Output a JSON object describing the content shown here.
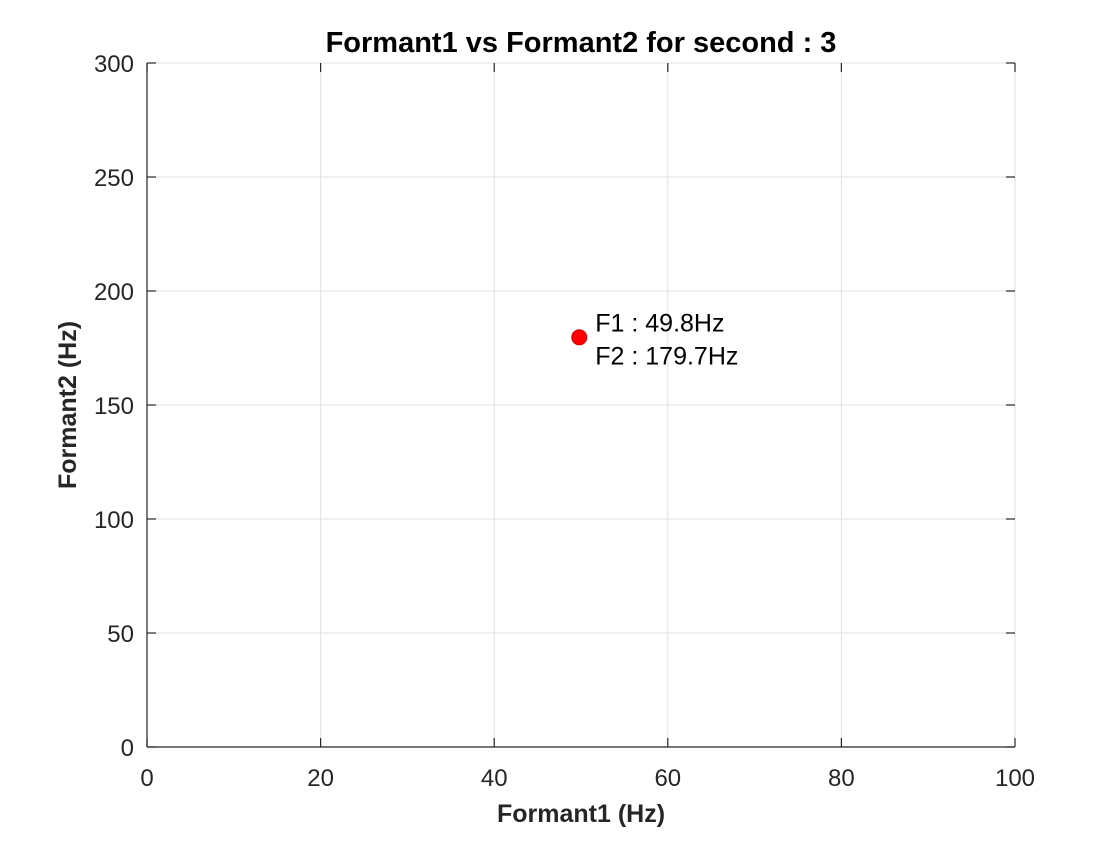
{
  "chart_data": {
    "type": "scatter",
    "title": "Formant1 vs Formant2 for second : 3",
    "xlabel": "Formant1 (Hz)",
    "ylabel": "Formant2 (Hz)",
    "xlim": [
      0,
      100
    ],
    "ylim": [
      0,
      300
    ],
    "xticks": [
      0,
      20,
      40,
      60,
      80,
      100
    ],
    "yticks": [
      0,
      50,
      100,
      150,
      200,
      250,
      300
    ],
    "xtick_labels": [
      "0",
      "20",
      "40",
      "60",
      "80",
      "100"
    ],
    "ytick_labels": [
      "0",
      "50",
      "100",
      "150",
      "200",
      "250",
      "300"
    ],
    "grid": true,
    "points": [
      {
        "x": 49.8,
        "y": 179.7,
        "color": "#ff0000",
        "labels": [
          "F1 : 49.8Hz",
          "F2 : 179.7Hz"
        ]
      }
    ]
  },
  "colors": {
    "grid": "#dfdfdf",
    "axis": "#262626",
    "marker": "#ff0000"
  }
}
